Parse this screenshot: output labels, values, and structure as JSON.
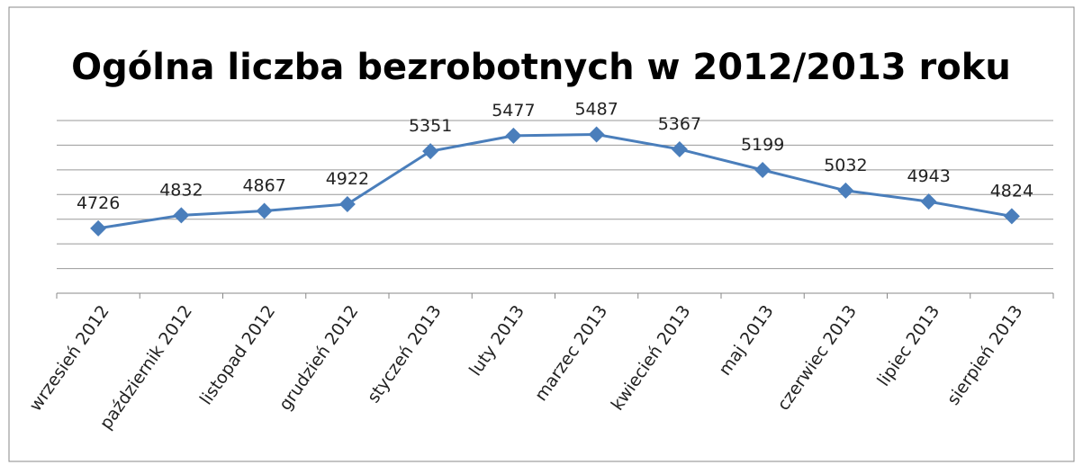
{
  "chart_data": {
    "type": "line",
    "title": "Ogólna liczba bezrobotnych w 2012/2013 roku",
    "categories": [
      "wrzesień 2012",
      "październik 2012",
      "listopad 2012",
      "grudzień 2012",
      "styczeń 2013",
      "luty 2013",
      "marzec 2013",
      "kwiecień 2013",
      "maj 2013",
      "czerwiec 2013",
      "lipiec 2013",
      "sierpień 2013"
    ],
    "values": [
      4726,
      4832,
      4867,
      4922,
      5351,
      5477,
      5487,
      5367,
      5199,
      5032,
      4943,
      4824
    ],
    "color": "#4a7ebb",
    "ylim": [
      4200,
      5600
    ],
    "yticks": [
      4200,
      4400,
      4600,
      4800,
      5000,
      5200,
      5400,
      5600
    ],
    "grid": true
  }
}
